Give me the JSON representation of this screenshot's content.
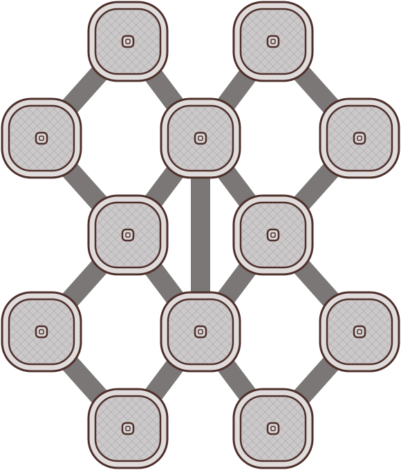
{
  "board": {
    "colors": {
      "background": "#ffffff",
      "edge": "#7a7776",
      "node_outline": "#4e2f2a",
      "node_fill": "#ccc9ca",
      "node_ring": "#e0dcdc",
      "hatch": "#b5b1b3",
      "center_ring": "#4e2f2a",
      "center_fill": "#d9d5d6"
    },
    "nodes": [
      {
        "id": "n1",
        "row": 0,
        "col": 1
      },
      {
        "id": "n2",
        "row": 0,
        "col": 3
      },
      {
        "id": "n3",
        "row": 1,
        "col": 0
      },
      {
        "id": "n4",
        "row": 1,
        "col": 2
      },
      {
        "id": "n5",
        "row": 1,
        "col": 4
      },
      {
        "id": "n6",
        "row": 2,
        "col": 1
      },
      {
        "id": "n7",
        "row": 2,
        "col": 3
      },
      {
        "id": "n8",
        "row": 3,
        "col": 0
      },
      {
        "id": "n9",
        "row": 3,
        "col": 2
      },
      {
        "id": "n10",
        "row": 3,
        "col": 4
      },
      {
        "id": "n11",
        "row": 4,
        "col": 1
      },
      {
        "id": "n12",
        "row": 4,
        "col": 3
      }
    ],
    "edges": [
      [
        "n1",
        "n3"
      ],
      [
        "n1",
        "n4"
      ],
      [
        "n2",
        "n4"
      ],
      [
        "n2",
        "n5"
      ],
      [
        "n3",
        "n6"
      ],
      [
        "n4",
        "n6"
      ],
      [
        "n4",
        "n7"
      ],
      [
        "n5",
        "n7"
      ],
      [
        "n4",
        "n9"
      ],
      [
        "n6",
        "n8"
      ],
      [
        "n6",
        "n9"
      ],
      [
        "n7",
        "n9"
      ],
      [
        "n7",
        "n10"
      ],
      [
        "n8",
        "n11"
      ],
      [
        "n9",
        "n11"
      ],
      [
        "n9",
        "n12"
      ],
      [
        "n10",
        "n12"
      ]
    ]
  }
}
